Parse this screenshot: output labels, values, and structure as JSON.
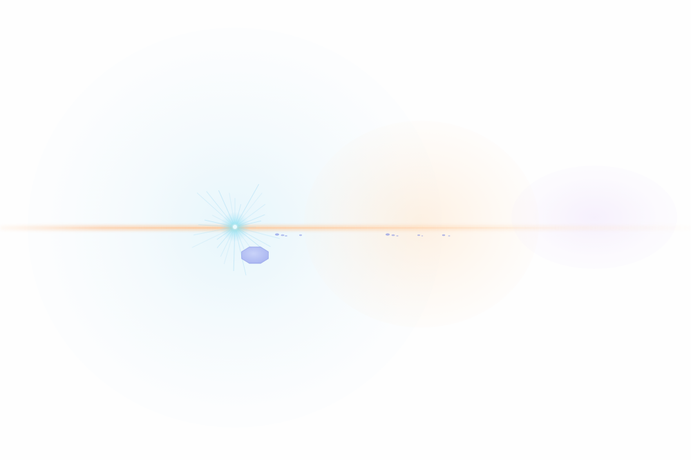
{
  "scene": {
    "subject": "lens-flare",
    "background_color": "#ffffff",
    "colors": {
      "burst_core": "#7fe0f0",
      "burst_rays": "#a8ddf5",
      "streak": "#ffc896",
      "warm_glow": "#ffd6aa",
      "violet_haze": "#e8d7fa",
      "ghost_fill": "#b4bef5",
      "ghost_stroke": "#7482e0",
      "artifact": "#6c7ce0"
    },
    "elements": [
      {
        "name": "starburst",
        "kind": "glow"
      },
      {
        "name": "anamorphic-streak",
        "kind": "line"
      },
      {
        "name": "octagon-ghost",
        "kind": "polygon",
        "sides": 8
      },
      {
        "name": "ghost-specks",
        "kind": "speck-cluster"
      },
      {
        "name": "warm-glow",
        "kind": "glow"
      },
      {
        "name": "violet-haze",
        "kind": "glow"
      }
    ]
  }
}
